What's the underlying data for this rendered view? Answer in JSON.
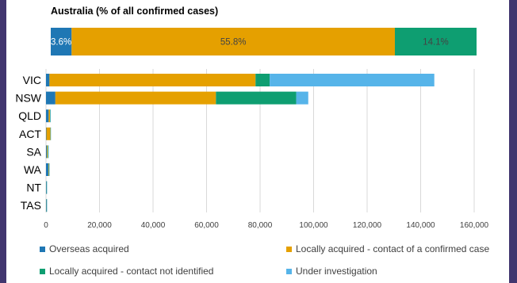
{
  "colors": {
    "overseas": "#1f77b4",
    "local_contact": "#e5a000",
    "local_unknown": "#0e9e71",
    "under_investigation": "#56b4e9",
    "frame": "#41366f"
  },
  "chart_data": [
    {
      "type": "bar",
      "orientation": "horizontal",
      "stacked": true,
      "title": "Australia (% of all confirmed cases)",
      "categories": [
        "Australia"
      ],
      "series": [
        {
          "name": "Overseas acquired",
          "values": [
            3.6
          ],
          "label": "3.6%"
        },
        {
          "name": "Locally acquired - contact of a confirmed case",
          "values": [
            55.8
          ],
          "label": "55.8%"
        },
        {
          "name": "Locally acquired - contact not identified",
          "values": [
            14.1
          ],
          "label": "14.1%"
        }
      ],
      "xlim": [
        0,
        73.5
      ],
      "grid": false
    },
    {
      "type": "bar",
      "orientation": "horizontal",
      "stacked": true,
      "categories": [
        "VIC",
        "NSW",
        "QLD",
        "ACT",
        "SA",
        "WA",
        "NT",
        "TAS"
      ],
      "series": [
        {
          "name": "Overseas acquired",
          "values": [
            1300,
            3500,
            1000,
            150,
            350,
            900,
            150,
            150
          ]
        },
        {
          "name": "Locally acquired - contact of a confirmed case",
          "values": [
            77000,
            60000,
            500,
            1500,
            300,
            200,
            60,
            70
          ]
        },
        {
          "name": "Locally acquired - contact not identified",
          "values": [
            5300,
            30000,
            100,
            50,
            200,
            150,
            20,
            20
          ]
        },
        {
          "name": "Under investigation",
          "values": [
            61500,
            4500,
            50,
            10,
            20,
            20,
            10,
            10
          ]
        }
      ],
      "xticks": [
        "0",
        "20,000",
        "40,000",
        "60,000",
        "80,000",
        "100,000",
        "120,000",
        "140,000",
        "160,000"
      ],
      "xlim": [
        0,
        160000
      ],
      "grid": true,
      "legend_position": "bottom"
    }
  ]
}
